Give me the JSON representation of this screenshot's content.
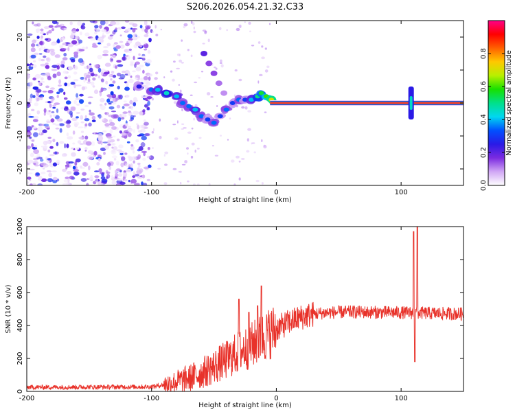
{
  "title": "S206.2026.054.21.32.C33",
  "chart_data": [
    {
      "type": "heatmap",
      "xlabel": "Height of straight line (km)",
      "ylabel": "Frequency (Hz)",
      "xlim": [
        -200,
        150
      ],
      "ylim": [
        -25,
        25
      ],
      "xticks": [
        -200,
        -100,
        0,
        100
      ],
      "yticks": [
        -20,
        -10,
        0,
        10,
        20
      ],
      "colorbar": {
        "label": "Normalized spectral amplitude",
        "range": [
          0.0,
          1.0
        ],
        "ticks": [
          0.0,
          0.2,
          0.4,
          0.6,
          0.8
        ],
        "tick_labels": [
          "0.0",
          "0.2",
          "0.4",
          "0.6",
          "0.8"
        ],
        "colors": [
          "#ffffff",
          "#d1a7f5",
          "#7b2be0",
          "#2a1ae6",
          "#0050ff",
          "#00d8f0",
          "#00e08a",
          "#18e000",
          "#b8f000",
          "#ffc800",
          "#ff6000",
          "#ff0000",
          "#ff0088"
        ]
      },
      "features": {
        "noise_region_x": [
          -200,
          -100
        ],
        "carrier_start_x": -5,
        "carrier_frequency_hz": 0,
        "spike_x": 108,
        "spike_freq_range": [
          -5,
          5
        ],
        "track_points": [
          [
            -110,
            5,
            0.25
          ],
          [
            -100,
            4,
            0.35
          ],
          [
            -95,
            4,
            0.4
          ],
          [
            -88,
            3,
            0.45
          ],
          [
            -80,
            2,
            0.4
          ],
          [
            -75,
            0,
            0.35
          ],
          [
            -70,
            -1,
            0.35
          ],
          [
            -65,
            -2,
            0.4
          ],
          [
            -60,
            -4,
            0.35
          ],
          [
            -55,
            -5,
            0.3
          ],
          [
            -50,
            -6,
            0.35
          ],
          [
            -45,
            -4,
            0.3
          ],
          [
            -40,
            -2,
            0.35
          ],
          [
            -35,
            0,
            0.3
          ],
          [
            -30,
            1,
            0.35
          ],
          [
            -25,
            1,
            0.3
          ],
          [
            -20,
            1,
            0.4
          ],
          [
            -15,
            2,
            0.5
          ],
          [
            -12,
            3,
            0.55
          ],
          [
            -8,
            2,
            0.6
          ],
          [
            -4,
            1,
            0.7
          ]
        ],
        "branch_points": [
          [
            -58,
            15,
            0.2
          ],
          [
            -54,
            12,
            0.15
          ],
          [
            -50,
            9,
            0.15
          ],
          [
            -46,
            6,
            0.12
          ],
          [
            -42,
            3,
            0.1
          ]
        ]
      }
    },
    {
      "type": "line",
      "xlabel": "Height of straight line (km)",
      "ylabel": "SNR (10 * v/v)",
      "xlim": [
        -200,
        150
      ],
      "ylim": [
        0,
        1000
      ],
      "xticks": [
        -200,
        -100,
        0,
        100
      ],
      "yticks": [
        0,
        200,
        400,
        600,
        800,
        1000
      ],
      "color": "#e8322a",
      "trend": [
        [
          -200,
          25
        ],
        [
          -100,
          28
        ],
        [
          -90,
          40
        ],
        [
          -80,
          60
        ],
        [
          -70,
          80
        ],
        [
          -60,
          110
        ],
        [
          -50,
          150
        ],
        [
          -40,
          190
        ],
        [
          -30,
          240
        ],
        [
          -20,
          280
        ],
        [
          -10,
          330
        ],
        [
          0,
          380
        ],
        [
          10,
          420
        ],
        [
          20,
          450
        ],
        [
          30,
          470
        ],
        [
          40,
          478
        ],
        [
          60,
          482
        ],
        [
          80,
          480
        ],
        [
          100,
          478
        ],
        [
          150,
          470
        ]
      ],
      "spikes": [
        [
          -30,
          560
        ],
        [
          -22,
          480
        ],
        [
          -15,
          520
        ],
        [
          -12,
          640
        ],
        [
          110,
          970
        ],
        [
          113,
          1000
        ]
      ],
      "dips": [
        [
          111,
          180
        ]
      ]
    }
  ]
}
